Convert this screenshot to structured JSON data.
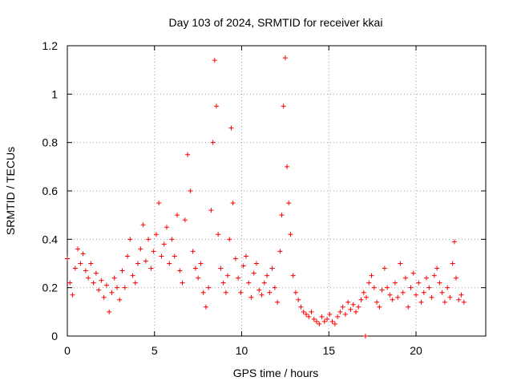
{
  "chart_data": {
    "type": "scatter",
    "title": "Day 103 of 2024, SRMTID for receiver kkai",
    "xlabel": "GPS time / hours",
    "ylabel": "SRMTID / TECUs",
    "xlim": [
      0,
      24
    ],
    "ylim": [
      0,
      1.2
    ],
    "x_ticks": [
      0,
      5,
      10,
      15,
      20
    ],
    "x_tick_labels": [
      "0",
      "5",
      "10",
      "15",
      "20"
    ],
    "y_ticks": [
      0,
      0.2,
      0.4,
      0.6,
      0.8,
      1.0,
      1.2
    ],
    "y_tick_labels": [
      "0",
      "0.2",
      "0.4",
      "0.6",
      "0.8",
      "1",
      "1.2"
    ],
    "grid": true,
    "marker": "plus",
    "color": "#ff0000",
    "series": [
      {
        "name": "kkai",
        "x": [
          0.0,
          0.15,
          0.3,
          0.45,
          0.6,
          0.75,
          0.9,
          1.05,
          1.2,
          1.35,
          1.5,
          1.65,
          1.8,
          1.95,
          2.1,
          2.25,
          2.4,
          2.55,
          2.7,
          2.85,
          3.0,
          3.15,
          3.3,
          3.45,
          3.6,
          3.75,
          3.9,
          4.05,
          4.2,
          4.35,
          4.5,
          4.65,
          4.8,
          4.95,
          5.1,
          5.25,
          5.4,
          5.55,
          5.7,
          5.85,
          6.0,
          6.15,
          6.3,
          6.45,
          6.6,
          6.75,
          6.9,
          7.05,
          7.2,
          7.35,
          7.5,
          7.65,
          7.8,
          7.95,
          8.1,
          8.25,
          8.35,
          8.45,
          8.55,
          8.65,
          8.8,
          8.95,
          9.1,
          9.2,
          9.3,
          9.4,
          9.5,
          9.65,
          9.8,
          9.95,
          10.1,
          10.25,
          10.4,
          10.55,
          10.7,
          10.85,
          11.0,
          11.15,
          11.3,
          11.45,
          11.6,
          11.75,
          11.9,
          12.05,
          12.2,
          12.3,
          12.4,
          12.5,
          12.6,
          12.7,
          12.8,
          12.95,
          13.1,
          13.25,
          13.4,
          13.55,
          13.7,
          13.85,
          14.0,
          14.15,
          14.3,
          14.45,
          14.6,
          14.75,
          14.9,
          15.05,
          15.2,
          15.35,
          15.5,
          15.65,
          15.8,
          15.95,
          16.1,
          16.25,
          16.4,
          16.55,
          16.7,
          16.85,
          17.0,
          17.15,
          17.3,
          17.45,
          17.6,
          17.75,
          17.9,
          18.05,
          18.2,
          18.35,
          18.5,
          18.65,
          18.8,
          18.95,
          19.1,
          19.25,
          19.4,
          19.55,
          19.7,
          19.85,
          20.0,
          20.15,
          20.3,
          20.45,
          20.6,
          20.75,
          20.9,
          21.05,
          21.2,
          21.35,
          21.5,
          21.65,
          21.8,
          21.95,
          22.1,
          22.2,
          22.3,
          22.45,
          22.6,
          22.75
        ],
        "y": [
          0.32,
          0.22,
          0.17,
          0.28,
          0.36,
          0.3,
          0.34,
          0.27,
          0.24,
          0.3,
          0.22,
          0.26,
          0.19,
          0.23,
          0.16,
          0.21,
          0.1,
          0.18,
          0.24,
          0.2,
          0.15,
          0.27,
          0.2,
          0.33,
          0.4,
          0.25,
          0.22,
          0.3,
          0.36,
          0.46,
          0.31,
          0.4,
          0.28,
          0.35,
          0.42,
          0.55,
          0.33,
          0.38,
          0.45,
          0.3,
          0.4,
          0.33,
          0.5,
          0.27,
          0.22,
          0.48,
          0.75,
          0.6,
          0.35,
          0.28,
          0.24,
          0.3,
          0.18,
          0.12,
          0.2,
          0.52,
          0.8,
          1.14,
          0.95,
          0.42,
          0.28,
          0.22,
          0.18,
          0.25,
          0.4,
          0.86,
          0.55,
          0.32,
          0.24,
          0.18,
          0.29,
          0.33,
          0.22,
          0.16,
          0.26,
          0.3,
          0.19,
          0.17,
          0.22,
          0.25,
          0.18,
          0.28,
          0.2,
          0.14,
          0.35,
          0.5,
          0.95,
          1.15,
          0.7,
          0.55,
          0.42,
          0.25,
          0.18,
          0.15,
          0.12,
          0.1,
          0.09,
          0.08,
          0.1,
          0.07,
          0.06,
          0.05,
          0.08,
          0.06,
          0.07,
          0.09,
          0.06,
          0.05,
          0.08,
          0.1,
          0.12,
          0.09,
          0.14,
          0.11,
          0.13,
          0.1,
          0.12,
          0.15,
          0.18,
          0.16,
          0.22,
          0.25,
          0.2,
          0.14,
          0.12,
          0.19,
          0.28,
          0.2,
          0.17,
          0.15,
          0.22,
          0.16,
          0.3,
          0.18,
          0.24,
          0.12,
          0.2,
          0.26,
          0.17,
          0.22,
          0.14,
          0.18,
          0.24,
          0.2,
          0.16,
          0.25,
          0.28,
          0.22,
          0.18,
          0.14,
          0.2,
          0.16,
          0.3,
          0.39,
          0.24,
          0.15,
          0.17,
          0.14
        ]
      }
    ],
    "outliers": [
      {
        "x": 17.1,
        "y": 0.0
      }
    ]
  }
}
